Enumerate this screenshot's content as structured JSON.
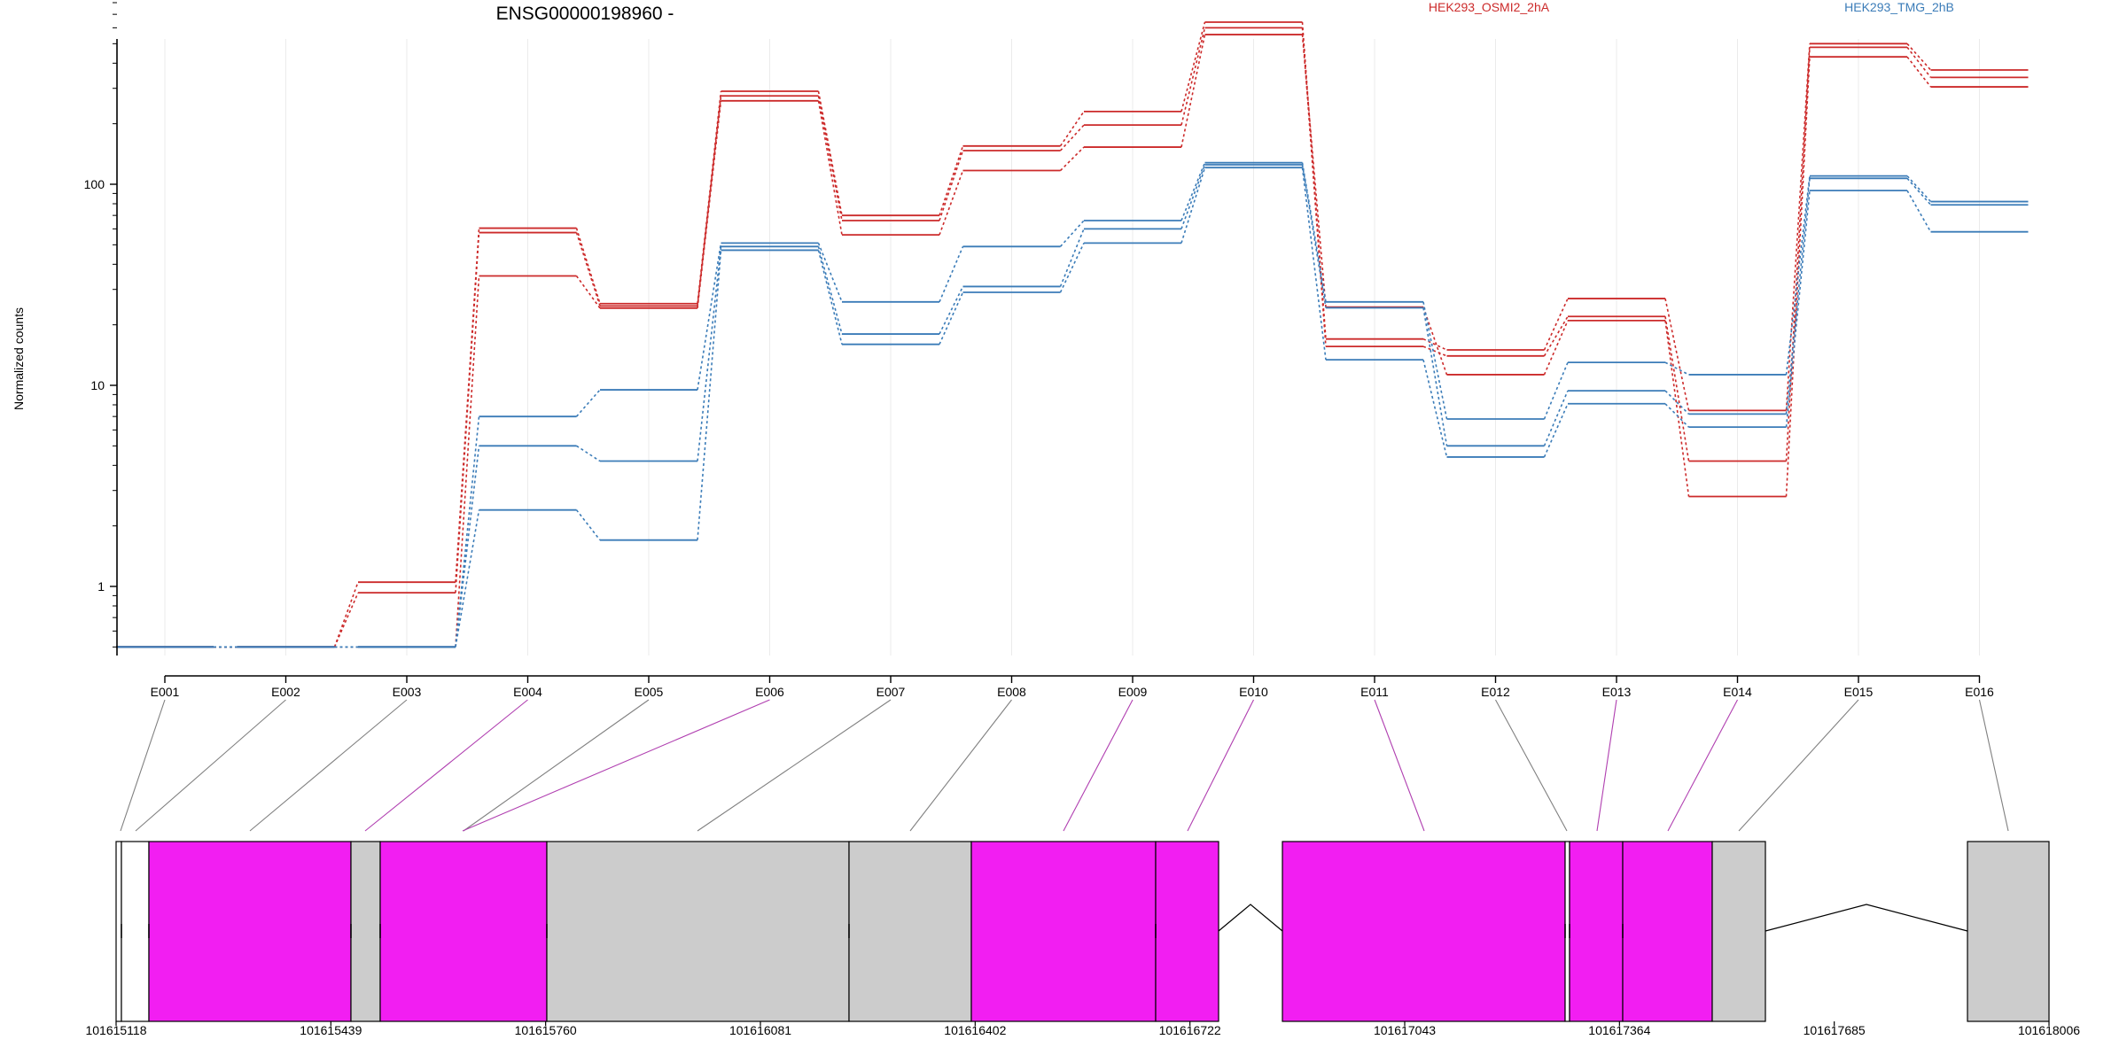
{
  "chart_data": {
    "type": "line",
    "title": "ENSG00000198960 -",
    "ylabel": "Normalized counts",
    "xlabel": "",
    "yscale": "log",
    "ylim": [
      0.5,
      850
    ],
    "yticks": [
      1,
      10,
      100
    ],
    "ytick_labels": [
      "1",
      "10",
      "100"
    ],
    "categories": [
      "E001",
      "E002",
      "E003",
      "E004",
      "E005",
      "E006",
      "E007",
      "E008",
      "E009",
      "E010",
      "E011",
      "E012",
      "E013",
      "E014",
      "E015",
      "E016"
    ],
    "legend_position": "top",
    "grid": "vertical",
    "series": [
      {
        "name": "HEK293_OSMI2_2hA",
        "group": "HEK293_OSMI2_2hA",
        "color": "#cc2a2a",
        "values": [
          0.5,
          0.5,
          1.05,
          60.5,
          25.5,
          290,
          70,
          155,
          230,
          640,
          17,
          15,
          27,
          7.5,
          500,
          370
        ]
      },
      {
        "name": "",
        "group": "HEK293_OSMI2_2hA",
        "color": "#cc2a2a",
        "values": [
          0.5,
          0.5,
          0.93,
          57.5,
          24.8,
          275,
          66,
          147,
          197,
          600,
          15.6,
          14,
          22,
          4.2,
          480,
          340
        ]
      },
      {
        "name": "",
        "group": "HEK293_OSMI2_2hA",
        "color": "#cc2a2a",
        "values": [
          0.5,
          0.5,
          0.5,
          35,
          24.2,
          260,
          56,
          117,
          153,
          555,
          24.5,
          11.3,
          21,
          2.8,
          430,
          305
        ]
      },
      {
        "name": "",
        "group": "HEK293_TMG_2hB",
        "color": "#3b7cb8",
        "values": [
          0.5,
          0.5,
          0.5,
          7,
          9.5,
          51,
          26,
          49,
          66,
          128,
          26,
          6.8,
          13,
          11.3,
          110,
          82
        ]
      },
      {
        "name": "",
        "group": "HEK293_TMG_2hB",
        "color": "#3b7cb8",
        "values": [
          0.5,
          0.5,
          0.5,
          5,
          4.2,
          49,
          18,
          31,
          60,
          125,
          24.3,
          5,
          9.4,
          7.2,
          107,
          79
        ]
      },
      {
        "name": "HEK293_TMG_2hB",
        "group": "HEK293_TMG_2hB",
        "color": "#3b7cb8",
        "values": [
          0.5,
          0.5,
          0.5,
          2.4,
          1.7,
          47,
          16,
          29,
          51,
          121,
          13.4,
          4.4,
          8.1,
          6.2,
          93,
          58
        ]
      }
    ],
    "gene_model": {
      "coordinate_ticks": [
        "101615118",
        "101615439",
        "101615760",
        "101616081",
        "101616402",
        "101616722",
        "101617043",
        "101617364",
        "101617685",
        "101618006"
      ],
      "exon_link_colors": [
        "#808080",
        "#808080",
        "#808080",
        "#b03fb0",
        "#808080",
        "#b03fb0",
        "#808080",
        "#808080",
        "#b03fb0",
        "#b03fb0",
        "#b03fb0",
        "#808080",
        "#b03fb0",
        "#b03fb0",
        "#808080",
        "#808080"
      ],
      "highlight_color": "#f21ef2",
      "default_exon_color": "#cccccc"
    }
  }
}
